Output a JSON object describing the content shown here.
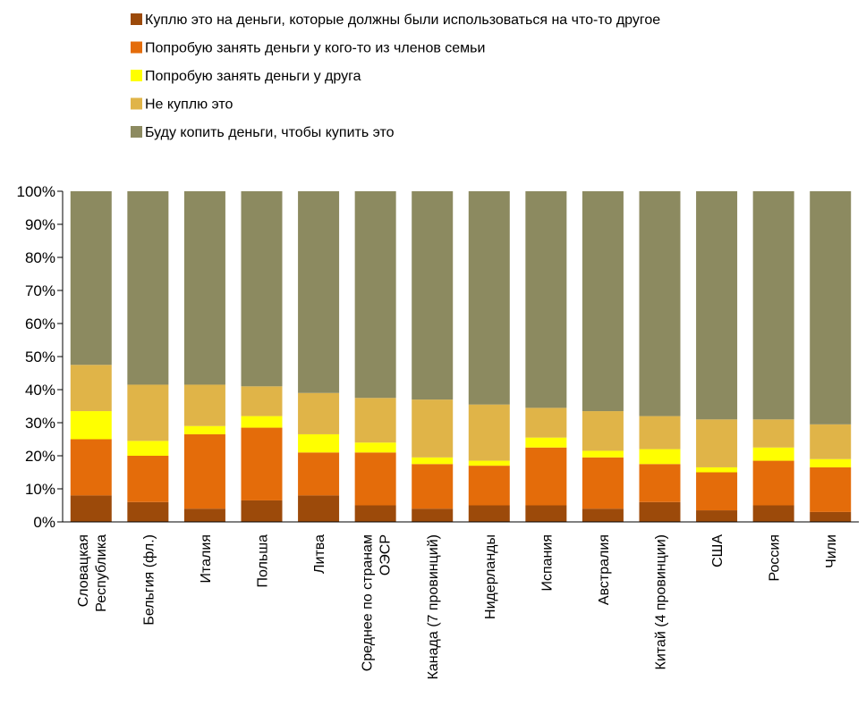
{
  "chart_data": {
    "type": "bar",
    "stacked": true,
    "percent": true,
    "ylim": [
      0,
      100
    ],
    "y_ticks": [
      "0%",
      "10%",
      "20%",
      "30%",
      "40%",
      "50%",
      "60%",
      "70%",
      "80%",
      "90%",
      "100%"
    ],
    "grid": false,
    "legend_position": "top",
    "categories": [
      [
        "Словацкая",
        "Республика"
      ],
      [
        "Бельгия (фл.)"
      ],
      [
        "Италия"
      ],
      [
        "Польша"
      ],
      [
        "Литва"
      ],
      [
        "Среднее по странам",
        "ОЭСР"
      ],
      [
        "Канада (7 провинций)"
      ],
      [
        "Нидерланды"
      ],
      [
        "Испания"
      ],
      [
        "Австралия"
      ],
      [
        "Китай (4 провинции)"
      ],
      [
        "США"
      ],
      [
        "Россия"
      ],
      [
        "Чили"
      ]
    ],
    "series": [
      {
        "name": "Куплю это на деньги, которые должны были использоваться на что-то другое",
        "color": "#9C4A0A",
        "values": [
          8,
          6,
          4,
          6.5,
          8,
          5,
          4,
          5,
          5,
          4,
          6,
          3.5,
          5,
          3
        ]
      },
      {
        "name": "Попробую занять деньги у кого-то из членов семьи",
        "color": "#E46C0A",
        "values": [
          17,
          14,
          22.5,
          22,
          13,
          16,
          13.5,
          12,
          17.5,
          15.5,
          11.5,
          11.5,
          13.5,
          13.5
        ]
      },
      {
        "name": "Попробую занять деньги у друга",
        "color": "#FFFF00",
        "values": [
          8.5,
          4.5,
          2.5,
          3.5,
          5.5,
          3,
          2,
          1.5,
          3,
          2,
          4.5,
          1.5,
          4,
          2.5
        ]
      },
      {
        "name": "Не куплю это",
        "color": "#E0B448",
        "values": [
          14,
          17,
          12.5,
          9,
          12.5,
          13.5,
          17.5,
          17,
          9,
          12,
          10,
          14.5,
          8.5,
          10.5
        ]
      },
      {
        "name": "Буду копить деньги, чтобы купить это",
        "color": "#8C8A60",
        "values": [
          52.5,
          58.5,
          58.5,
          59,
          61,
          62.5,
          63,
          64.5,
          65.5,
          66.5,
          68,
          69,
          69,
          70.5
        ]
      }
    ]
  }
}
